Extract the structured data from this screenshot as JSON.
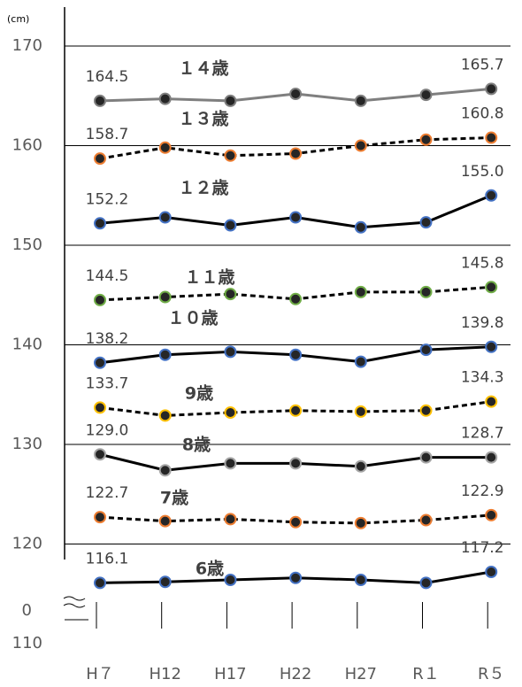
{
  "chart_data": {
    "type": "line",
    "y_unit": "(cm)",
    "axis_break_label": "0",
    "categories": [
      "H７",
      "H12",
      "H17",
      "H22",
      "H27",
      "R１",
      "R５"
    ],
    "ylim": [
      110,
      173.7
    ],
    "yticks": [
      110,
      120,
      130,
      140,
      150,
      160,
      170
    ],
    "grid": true,
    "series": [
      {
        "name": "１４歳",
        "color": "#7f7f7f",
        "marker_color": "#7f7f7f",
        "dash": false,
        "values": [
          164.5,
          164.7,
          164.5,
          165.2,
          164.5,
          165.1,
          165.7
        ],
        "value_labels": [
          "164.5",
          null,
          null,
          null,
          null,
          null,
          "165.7"
        ]
      },
      {
        "name": "１３歳",
        "color": "#000000",
        "marker_color": "#ed7d31",
        "dash": true,
        "values": [
          158.7,
          159.8,
          159.0,
          159.2,
          160.0,
          160.6,
          160.8
        ],
        "value_labels": [
          "158.7",
          null,
          null,
          null,
          null,
          null,
          "160.8"
        ]
      },
      {
        "name": "１２歳",
        "color": "#000000",
        "marker_color": "#4472c4",
        "dash": false,
        "values": [
          152.2,
          152.8,
          152.0,
          152.8,
          151.8,
          152.3,
          155.0
        ],
        "value_labels": [
          "152.2",
          null,
          null,
          null,
          null,
          null,
          "155.0"
        ]
      },
      {
        "name": "１１歳",
        "color": "#000000",
        "marker_color": "#70ad47",
        "dash": true,
        "values": [
          144.5,
          144.8,
          145.1,
          144.6,
          145.3,
          145.3,
          145.8
        ],
        "value_labels": [
          "144.5",
          null,
          null,
          null,
          null,
          null,
          "145.8"
        ]
      },
      {
        "name": "１０歳",
        "color": "#000000",
        "marker_color": "#4472c4",
        "dash": false,
        "values": [
          138.2,
          139.0,
          139.3,
          139.0,
          138.3,
          139.5,
          139.8
        ],
        "value_labels": [
          "138.2",
          null,
          null,
          null,
          null,
          null,
          "139.8"
        ]
      },
      {
        "name": "9歳",
        "color": "#000000",
        "marker_color": "#ffc000",
        "dash": true,
        "values": [
          133.7,
          132.9,
          133.2,
          133.4,
          133.3,
          133.4,
          134.3
        ],
        "value_labels": [
          "133.7",
          null,
          null,
          null,
          null,
          null,
          "134.3"
        ]
      },
      {
        "name": "8歳",
        "color": "#000000",
        "marker_color": "#a5a5a5",
        "dash": false,
        "values": [
          129.0,
          127.4,
          128.1,
          128.1,
          127.8,
          128.7,
          128.7
        ],
        "value_labels": [
          "129.0",
          null,
          null,
          null,
          null,
          null,
          "128.7"
        ]
      },
      {
        "name": "7歳",
        "color": "#000000",
        "marker_color": "#ed7d31",
        "dash": true,
        "values": [
          122.7,
          122.3,
          122.5,
          122.2,
          122.1,
          122.4,
          122.9
        ],
        "value_labels": [
          "122.7",
          null,
          null,
          null,
          null,
          null,
          "122.9"
        ]
      },
      {
        "name": "6歳",
        "color": "#000000",
        "marker_color": "#4472c4",
        "dash": false,
        "values": [
          116.1,
          116.2,
          116.4,
          116.6,
          116.4,
          116.1,
          117.2
        ],
        "value_labels": [
          "116.1",
          null,
          null,
          null,
          null,
          null,
          "117.2"
        ]
      }
    ]
  }
}
